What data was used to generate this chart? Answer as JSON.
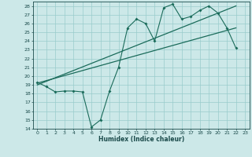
{
  "title": "",
  "xlabel": "Humidex (Indice chaleur)",
  "bg_color": "#cce8e8",
  "line_color": "#1a6b5a",
  "grid_color": "#99cccc",
  "xlim": [
    -0.5,
    23.5
  ],
  "ylim": [
    14,
    28.5
  ],
  "xticks": [
    0,
    1,
    2,
    3,
    4,
    5,
    6,
    7,
    8,
    9,
    10,
    11,
    12,
    13,
    14,
    15,
    16,
    17,
    18,
    19,
    20,
    21,
    22,
    23
  ],
  "yticks": [
    14,
    15,
    16,
    17,
    18,
    19,
    20,
    21,
    22,
    23,
    24,
    25,
    26,
    27,
    28
  ],
  "line1_x": [
    0,
    1,
    2,
    3,
    4,
    5,
    6,
    7,
    8,
    9,
    10,
    11,
    12,
    13,
    14,
    15,
    16,
    17,
    18,
    19,
    20,
    21,
    22
  ],
  "line1_y": [
    19.3,
    18.8,
    18.2,
    18.3,
    18.3,
    18.2,
    14.2,
    15.0,
    18.3,
    21.0,
    25.5,
    26.5,
    26.0,
    24.0,
    27.8,
    28.2,
    26.5,
    26.8,
    27.5,
    28.0,
    27.2,
    25.5,
    23.2
  ],
  "line2_x": [
    0,
    22
  ],
  "line2_y": [
    19.2,
    25.5
  ],
  "line3_x": [
    0,
    22
  ],
  "line3_y": [
    19.0,
    28.0
  ]
}
